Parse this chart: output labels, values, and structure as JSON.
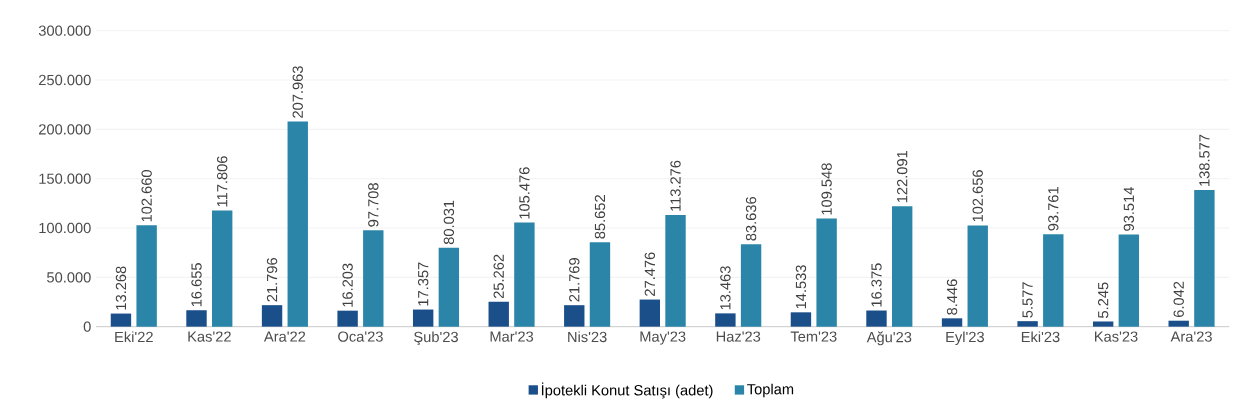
{
  "chart_data": {
    "type": "bar",
    "categories": [
      "Eki'22",
      "Kas'22",
      "Ara'22",
      "Oca'23",
      "Şub'23",
      "Mar'23",
      "Nis'23",
      "May'23",
      "Haz'23",
      "Tem'23",
      "Ağu'23",
      "Eyl'23",
      "Eki'23",
      "Kas'23",
      "Ara'23"
    ],
    "series": [
      {
        "name": "İpotekli Konut Satışı (adet)",
        "color": "#1b4f8a",
        "values": [
          13268,
          16655,
          21796,
          16203,
          17357,
          25262,
          21769,
          27476,
          13463,
          14533,
          16375,
          8446,
          5577,
          5245,
          6042
        ],
        "value_labels": [
          "13.268",
          "16.655",
          "21.796",
          "16.203",
          "17.357",
          "25.262",
          "21.769",
          "27.476",
          "13.463",
          "14.533",
          "16.375",
          "8.446",
          "5.577",
          "5.245",
          "6.042"
        ]
      },
      {
        "name": "Toplam",
        "color": "#2a85a8",
        "values": [
          102660,
          117806,
          207963,
          97708,
          80031,
          105476,
          85652,
          113276,
          83636,
          109548,
          122091,
          102656,
          93761,
          93514,
          138577
        ],
        "value_labels": [
          "102.660",
          "117.806",
          "207.963",
          "97.708",
          "80.031",
          "105.476",
          "85.652",
          "113.276",
          "83.636",
          "109.548",
          "122.091",
          "102.656",
          "93.761",
          "93.514",
          "138.577"
        ]
      }
    ],
    "ylim": [
      0,
      300000
    ],
    "yticks": [
      {
        "value": 0,
        "label": "0"
      },
      {
        "value": 50000,
        "label": "50.000"
      },
      {
        "value": 100000,
        "label": "100.000"
      },
      {
        "value": 150000,
        "label": "150.000"
      },
      {
        "value": 200000,
        "label": "200.000"
      },
      {
        "value": 250000,
        "label": "250.000"
      },
      {
        "value": 300000,
        "label": "300.000"
      }
    ],
    "grid": "y",
    "legend": "bottom"
  }
}
